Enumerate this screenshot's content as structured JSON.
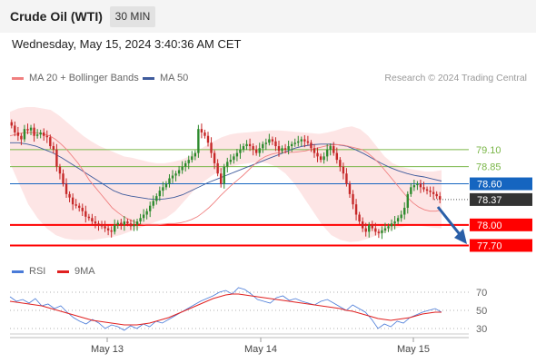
{
  "header": {
    "title": "Crude Oil (WTI)",
    "timeframe": "30 MIN",
    "datetime": "Wednesday, May 15, 2024 3:40:36 AM CET"
  },
  "legend": {
    "ma_bb": "MA 20 + Bollinger Bands",
    "ma50": "MA 50",
    "credit": "Research © 2024 Trading Central"
  },
  "rsi_legend": {
    "rsi": "RSI",
    "ma9": "9MA"
  },
  "colors": {
    "ma20": "#f08080",
    "band": "#fde0e0",
    "ma50": "#3f5b9c",
    "up": "#2e8b2e",
    "down": "#c62828",
    "support": "#ff0000",
    "resistance_green": "#7ab648",
    "blue_level": "#1565c0",
    "rsi": "#4a7bd8",
    "rsi_ma": "#e02020"
  },
  "chart_data": [
    {
      "type": "candlestick",
      "title": "Crude Oil (WTI)",
      "timeframe": "30 MIN",
      "x_labels": [
        "May 13",
        "May 14",
        "May 15"
      ],
      "ylim": [
        77.6,
        79.8
      ],
      "last_price": 78.37,
      "levels": [
        {
          "value": 79.1,
          "label": "79.10",
          "style": "resistance",
          "color": "#7ab648"
        },
        {
          "value": 78.85,
          "label": "78.85",
          "style": "resistance",
          "color": "#7ab648"
        },
        {
          "value": 78.6,
          "label": "78.60",
          "style": "pivot",
          "color": "#1565c0"
        },
        {
          "value": 78.37,
          "label": "78.37",
          "style": "last",
          "color": "#333333"
        },
        {
          "value": 78.0,
          "label": "78.00",
          "style": "support",
          "color": "#ff0000"
        },
        {
          "value": 77.7,
          "label": "77.70",
          "style": "support",
          "color": "#ff0000"
        }
      ],
      "forecast": "down",
      "close_series": [
        79.45,
        79.35,
        79.3,
        79.25,
        79.4,
        79.38,
        79.42,
        79.3,
        79.32,
        79.35,
        79.3,
        79.28,
        79.15,
        79.1,
        78.85,
        78.75,
        78.6,
        78.45,
        78.4,
        78.3,
        78.28,
        78.25,
        78.2,
        78.12,
        78.1,
        78.05,
        78.02,
        78.0,
        77.98,
        77.95,
        77.92,
        77.9,
        78.0,
        78.03,
        78.0,
        78.05,
        78.02,
        77.98,
        78.0,
        78.05,
        78.1,
        78.15,
        78.2,
        78.28,
        78.35,
        78.42,
        78.5,
        78.55,
        78.6,
        78.68,
        78.72,
        78.75,
        78.8,
        78.85,
        78.9,
        78.95,
        79.0,
        79.05,
        79.4,
        79.35,
        79.3,
        79.2,
        79.05,
        78.9,
        78.75,
        78.6,
        78.85,
        78.92,
        78.95,
        79.0,
        79.05,
        79.1,
        79.15,
        79.18,
        79.15,
        79.1,
        79.05,
        79.12,
        79.18,
        79.2,
        79.25,
        79.22,
        79.15,
        79.08,
        79.12,
        79.1,
        79.15,
        79.18,
        79.2,
        79.22,
        79.25,
        79.22,
        79.2,
        79.12,
        79.05,
        79.0,
        78.95,
        79.0,
        79.1,
        79.15,
        79.05,
        78.95,
        78.85,
        78.75,
        78.6,
        78.45,
        78.3,
        78.15,
        78.05,
        77.95,
        77.9,
        78.0,
        77.95,
        77.9,
        77.88,
        77.92,
        77.95,
        77.98,
        78.02,
        78.05,
        78.1,
        78.15,
        78.25,
        78.45,
        78.55,
        78.58,
        78.6,
        78.55,
        78.52,
        78.5,
        78.48,
        78.45,
        78.42,
        78.37
      ],
      "ma20_series": [
        79.3,
        79.32,
        79.34,
        79.35,
        79.35,
        79.34,
        79.32,
        79.3,
        79.25,
        79.18,
        79.1,
        79.0,
        78.9,
        78.78,
        78.65,
        78.55,
        78.45,
        78.35,
        78.25,
        78.18,
        78.12,
        78.08,
        78.04,
        78.01,
        78.0,
        78.0,
        78.0,
        78.01,
        78.02,
        78.02,
        78.03,
        78.05,
        78.08,
        78.12,
        78.18,
        78.25,
        78.33,
        78.42,
        78.5,
        78.58,
        78.65,
        78.72,
        78.8,
        78.88,
        78.95,
        79.0,
        79.03,
        79.05,
        79.06,
        79.06,
        79.06,
        79.07,
        79.08,
        79.1,
        79.12,
        79.14,
        79.16,
        79.17,
        79.17,
        79.16,
        79.14,
        79.12,
        79.1,
        79.05,
        78.98,
        78.9,
        78.8,
        78.7,
        78.6,
        78.5,
        78.4,
        78.32,
        78.26,
        78.22,
        78.2,
        78.2,
        78.22
      ],
      "upper_band": [
        79.65,
        79.7,
        79.72,
        79.72,
        79.7,
        79.68,
        79.6,
        79.5,
        79.4,
        79.3,
        79.22,
        79.15,
        79.1,
        79.05,
        79.0,
        78.98,
        78.95,
        78.92,
        78.9,
        78.9,
        78.92,
        78.95,
        79.0,
        79.08,
        79.15,
        79.22,
        79.28,
        79.32,
        79.34,
        79.35,
        79.36,
        79.37,
        79.38,
        79.38,
        79.37,
        79.36,
        79.35,
        79.34,
        79.33,
        79.35,
        79.38,
        79.42,
        79.44,
        79.4,
        79.3,
        79.15,
        79.0,
        78.9,
        78.85,
        78.82,
        78.8,
        78.78,
        78.78,
        78.8
      ],
      "lower_band": [
        78.9,
        78.6,
        78.3,
        78.1,
        77.95,
        77.85,
        77.8,
        77.78,
        77.78,
        77.78,
        77.8,
        77.82,
        77.85,
        77.9,
        77.95,
        78.0,
        78.05,
        78.1,
        78.2,
        78.35,
        78.5,
        78.62,
        78.72,
        78.8,
        78.85,
        78.88,
        78.9,
        78.92,
        78.9,
        78.85,
        78.75,
        78.6,
        78.4,
        78.2,
        78.0,
        77.85,
        77.78,
        77.75,
        77.76,
        77.8,
        77.85,
        77.9,
        77.95,
        77.98,
        78.0,
        77.98,
        77.96,
        77.95
      ],
      "ma50_series": [
        79.2,
        79.2,
        79.18,
        79.15,
        79.1,
        79.05,
        78.98,
        78.9,
        78.82,
        78.74,
        78.66,
        78.58,
        78.5,
        78.45,
        78.42,
        78.4,
        78.38,
        78.37,
        78.38,
        78.4,
        78.44,
        78.5,
        78.56,
        78.62,
        78.67,
        78.72,
        78.77,
        78.82,
        78.87,
        78.92,
        78.97,
        79.02,
        79.07,
        79.12,
        79.15,
        79.17,
        79.18,
        79.18,
        79.17,
        79.15,
        79.1,
        79.04,
        78.97,
        78.9,
        78.84,
        78.79,
        78.75,
        78.72,
        78.7,
        78.67,
        78.64
      ]
    },
    {
      "type": "line",
      "title": "RSI",
      "series": [
        {
          "name": "RSI"
        },
        {
          "name": "9MA"
        }
      ],
      "y_ticks": [
        "70",
        "50",
        "30"
      ],
      "ylim": [
        20,
        80
      ],
      "rsi_series": [
        65,
        60,
        62,
        58,
        63,
        55,
        57,
        52,
        55,
        48,
        42,
        38,
        35,
        40,
        36,
        30,
        34,
        32,
        28,
        33,
        30,
        35,
        32,
        38,
        36,
        40,
        44,
        48,
        52,
        56,
        60,
        63,
        66,
        70,
        72,
        68,
        75,
        73,
        68,
        62,
        60,
        58,
        64,
        66,
        61,
        63,
        60,
        58,
        56,
        60,
        62,
        58,
        54,
        50,
        56,
        52,
        48,
        40,
        30,
        35,
        32,
        38,
        36,
        42,
        45,
        48,
        50,
        52,
        48
      ],
      "ma9_series": [
        60,
        59,
        58,
        57,
        56,
        55,
        53,
        51,
        49,
        47,
        45,
        43,
        41,
        39,
        38,
        37,
        36,
        35,
        34,
        34,
        34,
        35,
        36,
        38,
        40,
        42,
        45,
        48,
        51,
        54,
        57,
        60,
        63,
        65,
        67,
        68,
        68,
        67,
        66,
        65,
        64,
        63,
        62,
        61,
        60,
        59,
        58,
        57,
        56,
        55,
        54,
        53,
        52,
        50,
        49,
        47,
        45,
        43,
        41,
        40,
        39,
        40,
        41,
        42,
        44,
        46,
        47,
        48,
        48
      ]
    }
  ]
}
